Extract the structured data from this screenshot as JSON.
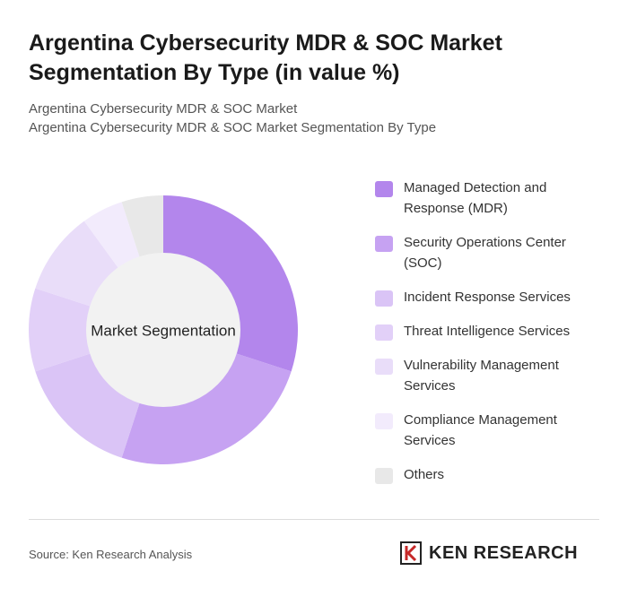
{
  "chart_data": {
    "type": "donut",
    "title": "Argentina Cybersecurity MDR & SOC Market Segmentation By Type (in value %)",
    "subtitle": [
      "Argentina Cybersecurity MDR & SOC Market",
      "Argentina Cybersecurity MDR & SOC Market Segmentation By Type"
    ],
    "center_label": "Market Segmentation",
    "categories": [
      "Managed Detection and Response (MDR)",
      "Security Operations Center (SOC)",
      "Incident Response Services",
      "Threat Intelligence Services",
      "Vulnerability Management Services",
      "Compliance Management Services",
      "Others"
    ],
    "values": [
      30,
      25,
      15,
      10,
      10,
      5,
      5
    ],
    "colors": [
      "#b386ec",
      "#c6a2f2",
      "#dac4f6",
      "#e2d0f8",
      "#e9ddf9",
      "#f2ebfc",
      "#e8e8e8"
    ],
    "source": "Source: Ken Research Analysis",
    "brand": "KEN RESEARCH"
  }
}
